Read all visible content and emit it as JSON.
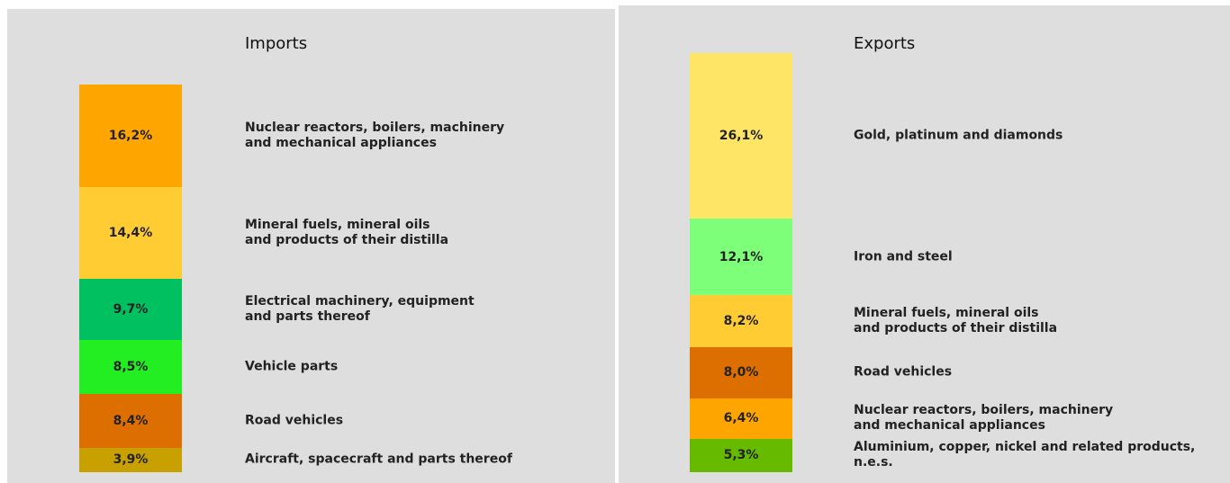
{
  "chart_data": [
    {
      "type": "stacked-bar",
      "title": "Imports",
      "categories": [
        "Nuclear reactors, boilers, machinery\nand mechanical appliances",
        "Mineral fuels, mineral oils\nand products of their distilla",
        "Electrical machinery, equipment\nand parts thereof",
        "Vehicle parts",
        "Road vehicles",
        "Aircraft, spacecraft and parts thereof"
      ],
      "values": [
        16.2,
        14.4,
        9.7,
        8.5,
        8.4,
        3.9
      ],
      "value_labels": [
        "16,2%",
        "14,4%",
        "9,7%",
        "8,5%",
        "8,4%",
        "3,9%"
      ],
      "colors": [
        "#ffa500",
        "#ffcc33",
        "#00c060",
        "#22ee22",
        "#dd6e00",
        "#c8a000"
      ]
    },
    {
      "type": "stacked-bar",
      "title": "Exports",
      "categories": [
        "Gold, platinum and diamonds",
        "Iron and steel",
        "Mineral fuels, mineral oils\nand products of their distilla",
        "Road vehicles",
        "Nuclear reactors, boilers, machinery\nand mechanical appliances",
        "Aluminium, copper, nickel and related products,\nn.e.s."
      ],
      "values": [
        26.1,
        12.1,
        8.2,
        8.0,
        6.4,
        5.3
      ],
      "value_labels": [
        "26,1%",
        "12,1%",
        "8,2%",
        "8,0%",
        "6,4%",
        "5,3%"
      ],
      "colors": [
        "#ffe566",
        "#7dff7a",
        "#ffcc33",
        "#dd6e00",
        "#ffa500",
        "#66bb00"
      ]
    }
  ]
}
